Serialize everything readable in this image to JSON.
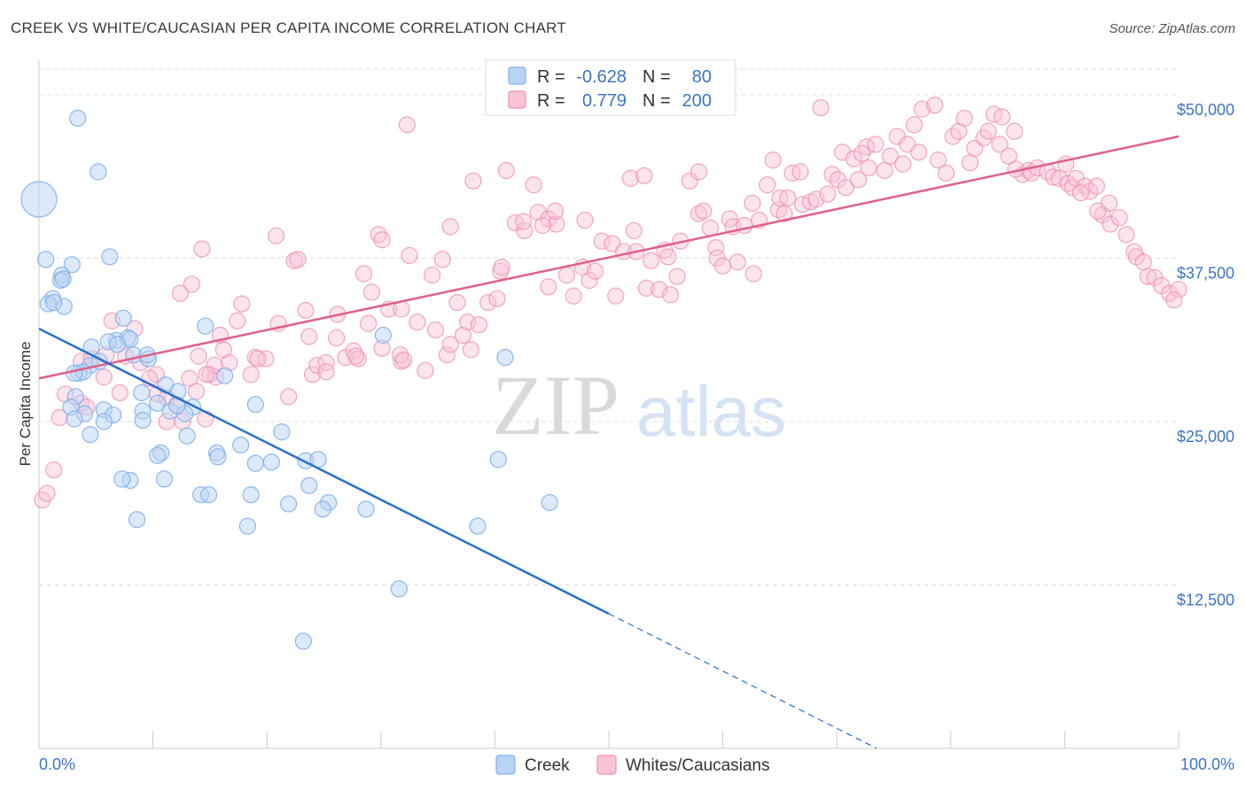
{
  "title": "CREEK VS WHITE/CAUCASIAN PER CAPITA INCOME CORRELATION CHART",
  "source": "Source: ZipAtlas.com",
  "watermark": {
    "zip": "ZIP",
    "atlas": "atlas"
  },
  "colors": {
    "creek": "#7fb0ec",
    "creek_fill": "#b9d3f4",
    "creek_line": "#2a6fd1",
    "white": "#f08fb0",
    "white_fill": "#f8c4d6",
    "white_line": "#e0608a",
    "axis_label": "#3d74c8",
    "grid": "#dddddd"
  },
  "legend": {
    "rows": [
      {
        "r_label": "R =",
        "r_value": "-0.628",
        "n_label": "N =",
        "n_value": "80"
      },
      {
        "r_label": "R =",
        "r_value": "0.779",
        "n_label": "N =",
        "n_value": "200"
      }
    ]
  },
  "bottom_legend": [
    "Creek",
    "Whites/Caucasians"
  ],
  "chart_data": {
    "type": "scatter",
    "title": "CREEK VS WHITE/CAUCASIAN PER CAPITA INCOME CORRELATION CHART",
    "ylabel": "Per Capita Income",
    "xlabel": "",
    "x_tick_labels": [
      "0.0%",
      "100.0%"
    ],
    "y_tick_labels": [
      "$12,500",
      "$25,000",
      "$37,500",
      "$50,000"
    ],
    "y_ticks": [
      12500,
      25000,
      37500,
      50000
    ],
    "xlim": [
      0,
      100
    ],
    "ylim": [
      0,
      52500
    ],
    "grid": "horizontal dashed",
    "legend_position": "top-center",
    "series": [
      {
        "name": "Creek",
        "R": -0.628,
        "N": 80,
        "trend": {
          "x0": 0,
          "y0": 32100,
          "x1": 50,
          "y1": 10300,
          "dashed_to_x": 73.5,
          "dashed_to_y": 0
        },
        "points": [
          [
            0,
            42000
          ],
          [
            3.4,
            48200
          ],
          [
            5.2,
            44100
          ],
          [
            0.6,
            37400
          ],
          [
            2.9,
            37000
          ],
          [
            6.2,
            37600
          ],
          [
            2,
            36200
          ],
          [
            1.9,
            35800
          ],
          [
            1.2,
            34400
          ],
          [
            0.8,
            34000
          ],
          [
            2.2,
            33800
          ],
          [
            7.4,
            32900
          ],
          [
            14.6,
            32300
          ],
          [
            6.8,
            31200
          ],
          [
            7.8,
            31400
          ],
          [
            6.1,
            31100
          ],
          [
            4.6,
            30700
          ],
          [
            8,
            31300
          ],
          [
            8.3,
            30100
          ],
          [
            9.6,
            29800
          ],
          [
            4.5,
            29300
          ],
          [
            5.3,
            29600
          ],
          [
            3.5,
            28700
          ],
          [
            3.9,
            28800
          ],
          [
            16.3,
            28500
          ],
          [
            11.1,
            27800
          ],
          [
            12.2,
            27300
          ],
          [
            9,
            27200
          ],
          [
            3.2,
            26900
          ],
          [
            10.4,
            26400
          ],
          [
            2.8,
            26100
          ],
          [
            4,
            25600
          ],
          [
            5.7,
            25900
          ],
          [
            13.5,
            26100
          ],
          [
            11.5,
            25800
          ],
          [
            3.1,
            25200
          ],
          [
            9.1,
            25800
          ],
          [
            12.8,
            25600
          ],
          [
            6.5,
            25500
          ],
          [
            5.7,
            25000
          ],
          [
            9.1,
            25100
          ],
          [
            19,
            26300
          ],
          [
            4.5,
            24000
          ],
          [
            13,
            23900
          ],
          [
            21.3,
            24200
          ],
          [
            17.7,
            23200
          ],
          [
            15.6,
            22600
          ],
          [
            10.7,
            22600
          ],
          [
            15.7,
            22300
          ],
          [
            10.4,
            22400
          ],
          [
            20.4,
            21900
          ],
          [
            23.4,
            22000
          ],
          [
            24.5,
            22100
          ],
          [
            11,
            20600
          ],
          [
            8,
            20500
          ],
          [
            7.3,
            20600
          ],
          [
            23.7,
            20100
          ],
          [
            14.2,
            19400
          ],
          [
            14.9,
            19400
          ],
          [
            18.6,
            19400
          ],
          [
            21.9,
            18700
          ],
          [
            25.4,
            18800
          ],
          [
            24.9,
            18300
          ],
          [
            28.7,
            18300
          ],
          [
            8.6,
            17500
          ],
          [
            18.3,
            17000
          ],
          [
            38.5,
            17000
          ],
          [
            30.2,
            31600
          ],
          [
            40.9,
            29900
          ],
          [
            44.8,
            18800
          ],
          [
            40.3,
            22100
          ],
          [
            31.6,
            12200
          ],
          [
            23.2,
            8200
          ],
          [
            1.3,
            34100
          ],
          [
            2.1,
            35900
          ],
          [
            3.1,
            28700
          ],
          [
            6.9,
            30900
          ],
          [
            12.1,
            26200
          ],
          [
            19,
            21800
          ],
          [
            9.5,
            30100
          ]
        ]
      },
      {
        "name": "Whites/Caucasians",
        "R": 0.779,
        "N": 200,
        "trend": {
          "x0": 0,
          "y0": 28300,
          "x1": 100,
          "y1": 46800
        },
        "points": [
          [
            0.3,
            19000
          ],
          [
            0.7,
            19500
          ],
          [
            1.3,
            21300
          ],
          [
            1.8,
            25300
          ],
          [
            2.3,
            27100
          ],
          [
            3.7,
            26400
          ],
          [
            4.2,
            26100
          ],
          [
            3.7,
            29600
          ],
          [
            4.6,
            29800
          ],
          [
            5.7,
            28400
          ],
          [
            6.4,
            32700
          ],
          [
            5.9,
            30100
          ],
          [
            7.1,
            27200
          ],
          [
            8.4,
            32100
          ],
          [
            7.6,
            30000
          ],
          [
            8.9,
            29500
          ],
          [
            10.4,
            27100
          ],
          [
            10.3,
            28600
          ],
          [
            11.2,
            26800
          ],
          [
            11.2,
            25000
          ],
          [
            12.1,
            26300
          ],
          [
            12.6,
            25000
          ],
          [
            13.2,
            28300
          ],
          [
            14,
            30000
          ],
          [
            14.6,
            25200
          ],
          [
            14.3,
            38200
          ],
          [
            13.4,
            35500
          ],
          [
            12.4,
            34800
          ],
          [
            15,
            28600
          ],
          [
            15.5,
            28400
          ],
          [
            15.9,
            31600
          ],
          [
            16.7,
            29500
          ],
          [
            16.2,
            30500
          ],
          [
            17.4,
            32700
          ],
          [
            17.8,
            34000
          ],
          [
            18.6,
            28600
          ],
          [
            19,
            29900
          ],
          [
            19.9,
            29800
          ],
          [
            20.8,
            39200
          ],
          [
            21,
            32500
          ],
          [
            21.9,
            26900
          ],
          [
            22.4,
            37300
          ],
          [
            22.7,
            37400
          ],
          [
            23.4,
            33500
          ],
          [
            24,
            28600
          ],
          [
            24.4,
            29300
          ],
          [
            25.2,
            29500
          ],
          [
            25.2,
            28800
          ],
          [
            26.1,
            31400
          ],
          [
            26.9,
            29900
          ],
          [
            27.6,
            30400
          ],
          [
            28,
            29800
          ],
          [
            27.8,
            30000
          ],
          [
            28.5,
            36300
          ],
          [
            28.9,
            32500
          ],
          [
            29.2,
            34900
          ],
          [
            29.8,
            39300
          ],
          [
            30.1,
            38900
          ],
          [
            30.7,
            33600
          ],
          [
            31.8,
            29600
          ],
          [
            31.7,
            30100
          ],
          [
            32,
            29700
          ],
          [
            32.3,
            47700
          ],
          [
            32.5,
            37700
          ],
          [
            33.2,
            32600
          ],
          [
            33.9,
            28900
          ],
          [
            34.8,
            32000
          ],
          [
            34.5,
            36200
          ],
          [
            35.4,
            37400
          ],
          [
            35.8,
            30100
          ],
          [
            36.1,
            30900
          ],
          [
            36.7,
            34100
          ],
          [
            37.2,
            31600
          ],
          [
            37.6,
            32600
          ],
          [
            37.9,
            30500
          ],
          [
            38.1,
            43400
          ],
          [
            38.6,
            32400
          ],
          [
            39.4,
            34100
          ],
          [
            40.2,
            34400
          ],
          [
            40.5,
            36500
          ],
          [
            41,
            44200
          ],
          [
            41.8,
            40200
          ],
          [
            42.6,
            39600
          ],
          [
            42.5,
            40300
          ],
          [
            43.4,
            43100
          ],
          [
            43.8,
            41000
          ],
          [
            44.7,
            35300
          ],
          [
            44.7,
            40500
          ],
          [
            45.4,
            40100
          ],
          [
            46.3,
            36200
          ],
          [
            46.9,
            34600
          ],
          [
            47.7,
            36800
          ],
          [
            48.3,
            35800
          ],
          [
            48.8,
            36500
          ],
          [
            49.4,
            38800
          ],
          [
            50.6,
            34600
          ],
          [
            50.3,
            38600
          ],
          [
            51.3,
            38000
          ],
          [
            51.9,
            43600
          ],
          [
            52.2,
            39600
          ],
          [
            52.4,
            38000
          ],
          [
            53.3,
            35200
          ],
          [
            53.7,
            37300
          ],
          [
            54.4,
            35100
          ],
          [
            54.9,
            38100
          ],
          [
            55.2,
            37600
          ],
          [
            55.4,
            34700
          ],
          [
            56,
            36100
          ],
          [
            56.3,
            38800
          ],
          [
            57.1,
            43400
          ],
          [
            57.9,
            44100
          ],
          [
            57.9,
            40900
          ],
          [
            58.3,
            41100
          ],
          [
            59.4,
            38300
          ],
          [
            59.5,
            37500
          ],
          [
            60,
            36900
          ],
          [
            60.6,
            40500
          ],
          [
            60.9,
            39900
          ],
          [
            61.3,
            37200
          ],
          [
            61.9,
            40000
          ],
          [
            62.6,
            41700
          ],
          [
            62.7,
            36300
          ],
          [
            63.2,
            40400
          ],
          [
            63.9,
            43100
          ],
          [
            64.4,
            45000
          ],
          [
            64.9,
            41200
          ],
          [
            65,
            42100
          ],
          [
            65.4,
            40900
          ],
          [
            65.7,
            42100
          ],
          [
            66.1,
            44000
          ],
          [
            66.8,
            44100
          ],
          [
            67,
            41600
          ],
          [
            67.7,
            41800
          ],
          [
            68.2,
            42000
          ],
          [
            69.2,
            42400
          ],
          [
            69.6,
            43900
          ],
          [
            70.1,
            43500
          ],
          [
            70.5,
            45600
          ],
          [
            70.8,
            42900
          ],
          [
            71.5,
            45100
          ],
          [
            71.9,
            43500
          ],
          [
            72.6,
            46000
          ],
          [
            72.8,
            44400
          ],
          [
            73.4,
            46200
          ],
          [
            74.2,
            44200
          ],
          [
            74.7,
            45300
          ],
          [
            75.3,
            46800
          ],
          [
            75.8,
            44700
          ],
          [
            76.2,
            46200
          ],
          [
            76.8,
            47700
          ],
          [
            77.2,
            45600
          ],
          [
            77.5,
            48900
          ],
          [
            78.6,
            49200
          ],
          [
            78.9,
            45000
          ],
          [
            79.6,
            44000
          ],
          [
            80.2,
            46800
          ],
          [
            80.7,
            47200
          ],
          [
            81.2,
            48200
          ],
          [
            81.7,
            44800
          ],
          [
            82.1,
            45900
          ],
          [
            82.9,
            46700
          ],
          [
            83.3,
            47200
          ],
          [
            83.8,
            48500
          ],
          [
            84.3,
            46200
          ],
          [
            84.5,
            48300
          ],
          [
            85.1,
            45300
          ],
          [
            85.6,
            47200
          ],
          [
            86.3,
            43900
          ],
          [
            86.8,
            44200
          ],
          [
            87.1,
            44000
          ],
          [
            87.6,
            44400
          ],
          [
            88.5,
            44100
          ],
          [
            89,
            43700
          ],
          [
            89.5,
            43600
          ],
          [
            90.3,
            43200
          ],
          [
            90.7,
            42900
          ],
          [
            91,
            43600
          ],
          [
            91.8,
            43000
          ],
          [
            92.2,
            42600
          ],
          [
            92.8,
            43000
          ],
          [
            93.3,
            40800
          ],
          [
            93.9,
            41700
          ],
          [
            94,
            40100
          ],
          [
            94.8,
            40600
          ],
          [
            95.4,
            39300
          ],
          [
            96.1,
            38000
          ],
          [
            96.3,
            37600
          ],
          [
            96.9,
            37200
          ],
          [
            97.3,
            36100
          ],
          [
            97.9,
            36000
          ],
          [
            98.5,
            35400
          ],
          [
            99.2,
            34800
          ],
          [
            100,
            35100
          ],
          [
            99.6,
            34300
          ],
          [
            92.9,
            41100
          ],
          [
            90.1,
            44700
          ],
          [
            91.4,
            42500
          ],
          [
            85.7,
            44300
          ],
          [
            72.2,
            45500
          ],
          [
            68.6,
            49000
          ],
          [
            58.9,
            39800
          ],
          [
            53.1,
            43800
          ],
          [
            47.9,
            40400
          ],
          [
            45.3,
            41100
          ],
          [
            44.2,
            40000
          ],
          [
            40.6,
            36800
          ],
          [
            36.1,
            39900
          ],
          [
            31.8,
            33600
          ],
          [
            30.1,
            30600
          ],
          [
            26.2,
            33200
          ],
          [
            23.7,
            31500
          ],
          [
            19.2,
            29800
          ],
          [
            15.4,
            29300
          ],
          [
            14.7,
            28600
          ],
          [
            13.8,
            27300
          ],
          [
            9.7,
            28300
          ]
        ]
      }
    ]
  }
}
